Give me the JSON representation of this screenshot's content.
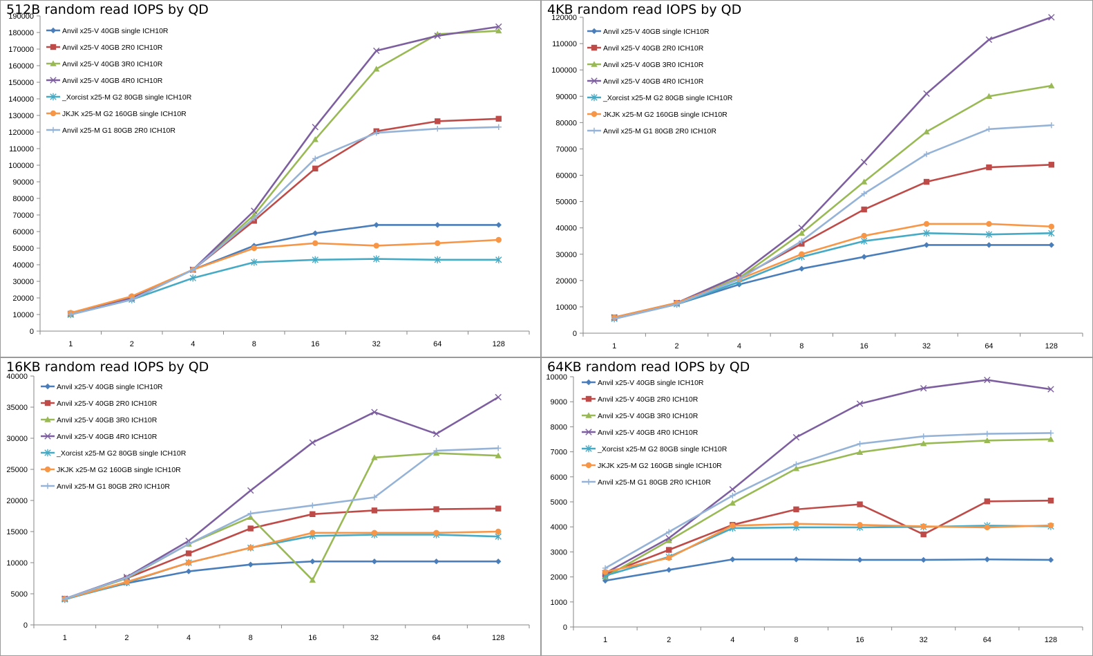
{
  "categories": [
    "1",
    "2",
    "4",
    "8",
    "16",
    "32",
    "64",
    "128"
  ],
  "series_styles": [
    {
      "color": "#4a7ebb",
      "marker": "diamond"
    },
    {
      "color": "#be4b48",
      "marker": "square"
    },
    {
      "color": "#98b954",
      "marker": "triangle"
    },
    {
      "color": "#7d5fa0",
      "marker": "x"
    },
    {
      "color": "#46aac4",
      "marker": "star"
    },
    {
      "color": "#f79646",
      "marker": "circle"
    },
    {
      "color": "#95b3d7",
      "marker": "plus"
    }
  ],
  "chart_data": [
    {
      "type": "line",
      "title": "512B random read IOPS by QD",
      "xlabel": "",
      "ylabel": "",
      "ylim": [
        0,
        190000
      ],
      "ytick_step": 10000,
      "grid": false,
      "legend": "top-left",
      "categories": [
        "1",
        "2",
        "4",
        "8",
        "16",
        "32",
        "64",
        "128"
      ],
      "series": [
        {
          "name": "Anvil x25-V 40GB single ICH10R",
          "values": [
            10000,
            19000,
            37000,
            51500,
            59000,
            64000,
            64000,
            64000
          ]
        },
        {
          "name": "Anvil x25-V 40GB 2R0 ICH10R",
          "values": [
            10500,
            20000,
            37000,
            66500,
            98000,
            120500,
            126500,
            128000
          ]
        },
        {
          "name": "Anvil x25-V 40GB 3R0 ICH10R",
          "values": [
            10000,
            20000,
            37000,
            70000,
            115500,
            158000,
            179000,
            181000
          ]
        },
        {
          "name": "Anvil x25-V 40GB 4R0 ICH10R",
          "values": [
            10000,
            20000,
            37000,
            72500,
            123000,
            169000,
            178000,
            183500
          ]
        },
        {
          "name": "_Xorcist x25-M G2 80GB single ICH10R",
          "values": [
            10000,
            19000,
            32000,
            41500,
            43000,
            43500,
            43000,
            43000
          ]
        },
        {
          "name": "JKJK x25-M G2 160GB single ICH10R",
          "values": [
            11000,
            21000,
            37000,
            50000,
            53000,
            51500,
            53000,
            55000
          ]
        },
        {
          "name": "Anvil x25-M G1 80GB 2R0 ICH10R",
          "values": [
            10000,
            19000,
            37000,
            68000,
            104000,
            119500,
            122000,
            123000
          ]
        }
      ]
    },
    {
      "type": "line",
      "title": "4KB random read IOPS by QD",
      "xlabel": "",
      "ylabel": "",
      "ylim": [
        0,
        120000
      ],
      "ytick_step": 10000,
      "grid": false,
      "legend": "top-left",
      "categories": [
        "1",
        "2",
        "4",
        "8",
        "16",
        "32",
        "64",
        "128"
      ],
      "series": [
        {
          "name": "Anvil x25-V 40GB single ICH10R",
          "values": [
            5500,
            11000,
            18500,
            24500,
            29000,
            33500,
            33500,
            33500
          ]
        },
        {
          "name": "Anvil x25-V 40GB 2R0 ICH10R",
          "values": [
            6000,
            11500,
            21000,
            34000,
            47000,
            57500,
            63000,
            64000
          ]
        },
        {
          "name": "Anvil x25-V 40GB 3R0 ICH10R",
          "values": [
            6000,
            11500,
            21000,
            38000,
            57500,
            76500,
            90000,
            94000
          ]
        },
        {
          "name": "Anvil x25-V 40GB 4R0 ICH10R",
          "values": [
            6000,
            11500,
            22000,
            40000,
            65000,
            91000,
            111500,
            120000
          ]
        },
        {
          "name": "_Xorcist x25-M G2 80GB single ICH10R",
          "values": [
            5500,
            11000,
            19500,
            29000,
            35000,
            38000,
            37500,
            38000
          ]
        },
        {
          "name": "JKJK x25-M G2 160GB single ICH10R",
          "values": [
            6000,
            11500,
            20500,
            30000,
            37000,
            41500,
            41500,
            40500
          ]
        },
        {
          "name": "Anvil x25-M G1 80GB 2R0 ICH10R",
          "values": [
            5500,
            11000,
            20500,
            35000,
            53000,
            68000,
            77500,
            79000
          ]
        }
      ]
    },
    {
      "type": "line",
      "title": "16KB random read IOPS by QD",
      "xlabel": "",
      "ylabel": "",
      "ylim": [
        0,
        40000
      ],
      "ytick_step": 5000,
      "grid": false,
      "legend": "top-left",
      "categories": [
        "1",
        "2",
        "4",
        "8",
        "16",
        "32",
        "64",
        "128"
      ],
      "series": [
        {
          "name": "Anvil x25-V 40GB single ICH10R",
          "values": [
            4200,
            6700,
            8600,
            9700,
            10200,
            10200,
            10200,
            10200
          ]
        },
        {
          "name": "Anvil x25-V 40GB 2R0 ICH10R",
          "values": [
            4200,
            7500,
            11500,
            15500,
            17800,
            18400,
            18600,
            18700
          ]
        },
        {
          "name": "Anvil x25-V 40GB 3R0 ICH10R",
          "values": [
            4200,
            7500,
            13000,
            17300,
            7200,
            26900,
            27600,
            27200
          ]
        },
        {
          "name": "Anvil x25-V 40GB 4R0 ICH10R",
          "values": [
            4200,
            7700,
            13500,
            21600,
            29300,
            34200,
            30700,
            36600
          ]
        },
        {
          "name": "_Xorcist x25-M G2 80GB single ICH10R",
          "values": [
            4100,
            6800,
            10000,
            12400,
            14300,
            14500,
            14500,
            14200
          ]
        },
        {
          "name": "JKJK x25-M G2 160GB single ICH10R",
          "values": [
            4200,
            6900,
            10000,
            12400,
            14800,
            14800,
            14800,
            15000
          ]
        },
        {
          "name": "Anvil x25-M G1 80GB 2R0 ICH10R",
          "values": [
            4200,
            7600,
            13000,
            17900,
            19200,
            20500,
            28000,
            28400
          ]
        }
      ]
    },
    {
      "type": "line",
      "title": "64KB random read IOPS by QD",
      "xlabel": "",
      "ylabel": "",
      "ylim": [
        0,
        10000
      ],
      "ytick_step": 1000,
      "grid": false,
      "legend": "top-left",
      "categories": [
        "1",
        "2",
        "4",
        "8",
        "16",
        "32",
        "64",
        "128"
      ],
      "series": [
        {
          "name": "Anvil x25-V 40GB single ICH10R",
          "values": [
            1850,
            2280,
            2700,
            2700,
            2680,
            2680,
            2700,
            2680
          ]
        },
        {
          "name": "Anvil x25-V 40GB 2R0 ICH10R",
          "values": [
            2100,
            3080,
            4080,
            4700,
            4900,
            3700,
            5020,
            5050
          ]
        },
        {
          "name": "Anvil x25-V 40GB 3R0 ICH10R",
          "values": [
            2000,
            3450,
            4950,
            6330,
            6980,
            7330,
            7450,
            7500
          ]
        },
        {
          "name": "Anvil x25-V 40GB 4R0 ICH10R",
          "values": [
            2150,
            3550,
            5500,
            7580,
            8920,
            9540,
            9870,
            9500
          ]
        },
        {
          "name": "_Xorcist x25-M G2 80GB single ICH10R",
          "values": [
            2050,
            2800,
            3950,
            3980,
            3980,
            4000,
            4050,
            4020
          ]
        },
        {
          "name": "JKJK x25-M G2 160GB single ICH10R",
          "values": [
            2200,
            2760,
            4050,
            4120,
            4080,
            4020,
            3980,
            4060
          ]
        },
        {
          "name": "Anvil x25-M G1 80GB 2R0 ICH10R",
          "values": [
            2350,
            3800,
            5250,
            6500,
            7320,
            7620,
            7720,
            7750
          ]
        }
      ]
    }
  ]
}
